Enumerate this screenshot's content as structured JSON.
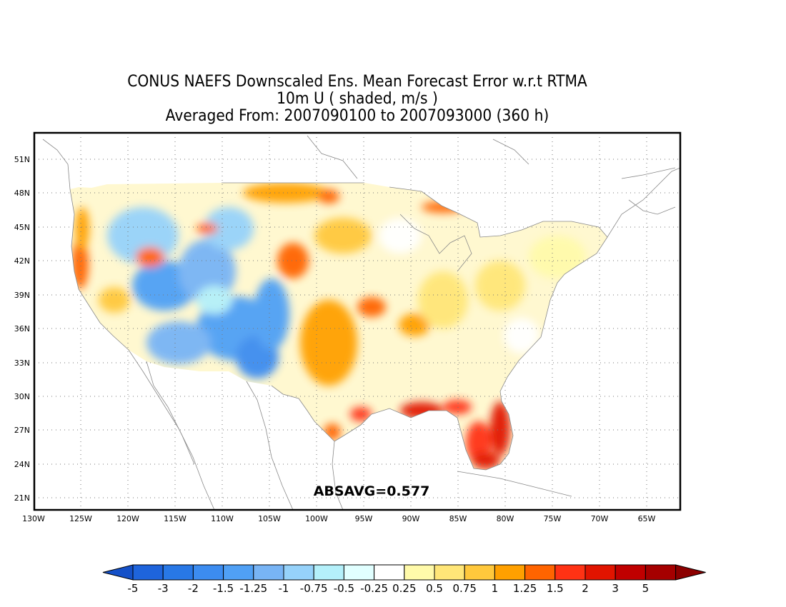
{
  "title": {
    "line1": "CONUS NAEFS Downscaled Ens. Mean Forecast Error w.r.t RTMA",
    "line2": "10m U ( shaded, m/s )",
    "line3": "Averaged From: 2007090100 to 2007093000 (360 h)"
  },
  "map": {
    "lon_labels": [
      "130W",
      "125W",
      "120W",
      "115W",
      "110W",
      "105W",
      "100W",
      "95W",
      "90W",
      "85W",
      "80W",
      "75W",
      "70W",
      "65W"
    ],
    "lat_labels": [
      "51N",
      "48N",
      "45N",
      "42N",
      "39N",
      "36N",
      "33N",
      "30N",
      "27N",
      "24N",
      "21N"
    ],
    "absavg": "ABSAVG=0.577"
  },
  "colorbar": {
    "labels": [
      "-5",
      "-3",
      "-2",
      "-1.5",
      "-1.25",
      "-1",
      "-0.75",
      "-0.5",
      "-0.25",
      "0.25",
      "0.5",
      "0.75",
      "1",
      "1.25",
      "1.5",
      "2",
      "3",
      "5"
    ],
    "colors": [
      "#1e64dc",
      "#2878e6",
      "#3c8cf0",
      "#50a0f5",
      "#78b4f5",
      "#96d2fa",
      "#b4f0fa",
      "#e1ffff",
      "#ffffff",
      "#fffaaa",
      "#ffe678",
      "#ffc83c",
      "#ffa000",
      "#ff6400",
      "#ff3214",
      "#e11400",
      "#c00000",
      "#a50000"
    ],
    "low_arrow_color": "#1450c8",
    "high_arrow_color": "#8c0000"
  }
}
